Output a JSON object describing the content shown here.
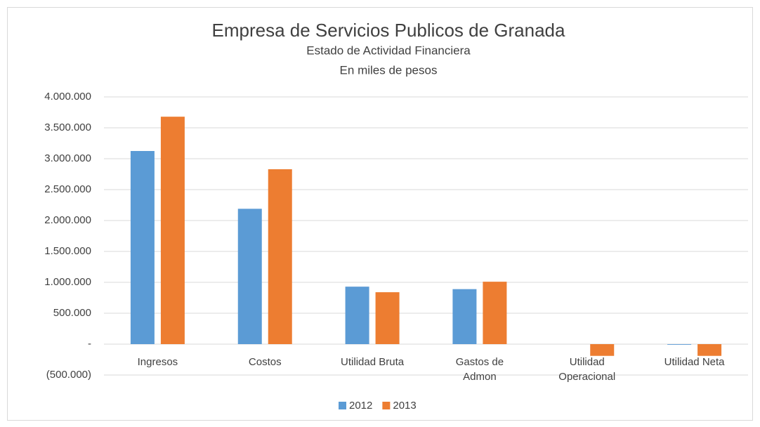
{
  "chart_data": {
    "type": "bar",
    "title": "Empresa de Servicios Publicos de Granada",
    "subtitle": [
      "Estado de Actividad Financiera",
      "En miles de pesos"
    ],
    "categories": [
      "Ingresos",
      "Costos",
      "Utilidad Bruta",
      "Gastos de Admon",
      "Utilidad Operacional",
      "Utilidad Neta"
    ],
    "series": [
      {
        "name": "2012",
        "color": "#5b9bd5",
        "values": [
          3125000,
          2190000,
          930000,
          890000,
          0,
          -10000
        ]
      },
      {
        "name": "2013",
        "color": "#ed7d31",
        "values": [
          3680000,
          2830000,
          840000,
          1010000,
          -190000,
          -190000
        ]
      }
    ],
    "ylim": [
      -500000,
      4000000
    ],
    "yticks": [
      {
        "value": -500000,
        "label": "(500.000)"
      },
      {
        "value": 0,
        "label": "-"
      },
      {
        "value": 500000,
        "label": "500.000"
      },
      {
        "value": 1000000,
        "label": "1.000.000"
      },
      {
        "value": 1500000,
        "label": "1.500.000"
      },
      {
        "value": 2000000,
        "label": "2.000.000"
      },
      {
        "value": 2500000,
        "label": "2.500.000"
      },
      {
        "value": 3000000,
        "label": "3.000.000"
      },
      {
        "value": 3500000,
        "label": "3.500.000"
      },
      {
        "value": 4000000,
        "label": "4.000.000"
      }
    ],
    "grid": true,
    "legend": "bottom"
  }
}
